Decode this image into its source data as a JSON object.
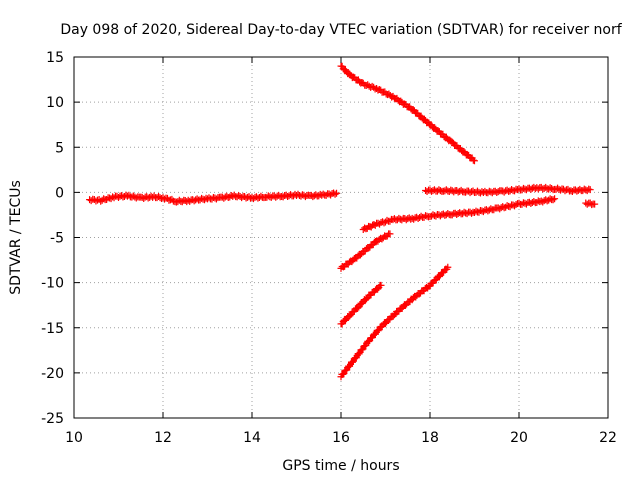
{
  "chart_data": {
    "type": "scatter",
    "title": "Day 098 of 2020, Sidereal Day-to-day VTEC variation (SDTVAR) for receiver norf",
    "xlabel": "GPS time / hours",
    "ylabel": "SDTVAR / TECUs",
    "xlim": [
      10,
      22
    ],
    "ylim": [
      -25,
      15
    ],
    "x_ticks": [
      10,
      12,
      14,
      16,
      18,
      20,
      22
    ],
    "y_ticks": [
      -25,
      -20,
      -15,
      -10,
      -5,
      0,
      5,
      10,
      15
    ],
    "x_tick_labels": [
      "10",
      "12",
      "14",
      "16",
      "18",
      "20",
      "22"
    ],
    "y_tick_labels": [
      "-25",
      "-20",
      "-15",
      "-10",
      "-5",
      "0",
      "5",
      "10",
      "15"
    ],
    "grid": true,
    "grid_style": "dotted",
    "marker": "plus",
    "color": "#ff0000",
    "series": [
      {
        "points": [
          [
            10.35,
            -0.8
          ],
          [
            10.6,
            -0.9
          ],
          [
            10.9,
            -0.5
          ],
          [
            11.2,
            -0.4
          ],
          [
            11.5,
            -0.6
          ],
          [
            11.8,
            -0.5
          ],
          [
            12.0,
            -0.6
          ],
          [
            12.3,
            -1.0
          ],
          [
            12.6,
            -0.9
          ],
          [
            13.0,
            -0.7
          ],
          [
            13.3,
            -0.6
          ],
          [
            13.6,
            -0.4
          ],
          [
            14.0,
            -0.6
          ],
          [
            14.3,
            -0.5
          ],
          [
            14.7,
            -0.4
          ],
          [
            15.0,
            -0.3
          ],
          [
            15.3,
            -0.4
          ],
          [
            15.6,
            -0.3
          ],
          [
            15.9,
            -0.1
          ]
        ]
      },
      {
        "points": [
          [
            16.0,
            14.0
          ],
          [
            16.2,
            13.0
          ],
          [
            16.5,
            12.0
          ],
          [
            16.8,
            11.5
          ],
          [
            17.2,
            10.5
          ],
          [
            17.6,
            9.2
          ],
          [
            18.0,
            7.5
          ],
          [
            18.5,
            5.5
          ],
          [
            19.0,
            3.5
          ]
        ]
      },
      {
        "points": [
          [
            17.9,
            0.2
          ],
          [
            18.3,
            0.2
          ],
          [
            18.8,
            0.1
          ],
          [
            19.2,
            0.0
          ],
          [
            19.6,
            0.1
          ],
          [
            20.0,
            0.3
          ],
          [
            20.4,
            0.5
          ],
          [
            20.8,
            0.4
          ],
          [
            21.2,
            0.2
          ],
          [
            21.6,
            0.3
          ]
        ]
      },
      {
        "points": [
          [
            16.5,
            -4.1
          ],
          [
            16.8,
            -3.5
          ],
          [
            17.2,
            -3.0
          ],
          [
            17.6,
            -2.9
          ],
          [
            18.0,
            -2.6
          ],
          [
            18.5,
            -2.4
          ],
          [
            19.0,
            -2.2
          ],
          [
            19.5,
            -1.8
          ],
          [
            20.0,
            -1.3
          ],
          [
            20.5,
            -1.0
          ],
          [
            20.8,
            -0.7
          ]
        ]
      },
      {
        "points": [
          [
            21.5,
            -1.2
          ],
          [
            21.7,
            -1.3
          ]
        ]
      },
      {
        "points": [
          [
            16.0,
            -8.4
          ],
          [
            16.3,
            -7.4
          ],
          [
            16.6,
            -6.2
          ],
          [
            16.8,
            -5.4
          ],
          [
            17.1,
            -4.6
          ]
        ]
      },
      {
        "points": [
          [
            16.0,
            -14.6
          ],
          [
            16.2,
            -13.6
          ],
          [
            16.4,
            -12.6
          ],
          [
            16.6,
            -11.6
          ],
          [
            16.9,
            -10.3
          ]
        ]
      },
      {
        "points": [
          [
            16.0,
            -20.4
          ],
          [
            16.3,
            -18.5
          ],
          [
            16.6,
            -16.6
          ],
          [
            16.9,
            -14.9
          ],
          [
            17.2,
            -13.5
          ],
          [
            17.6,
            -11.8
          ],
          [
            18.0,
            -10.3
          ],
          [
            18.4,
            -8.3
          ]
        ]
      }
    ]
  }
}
